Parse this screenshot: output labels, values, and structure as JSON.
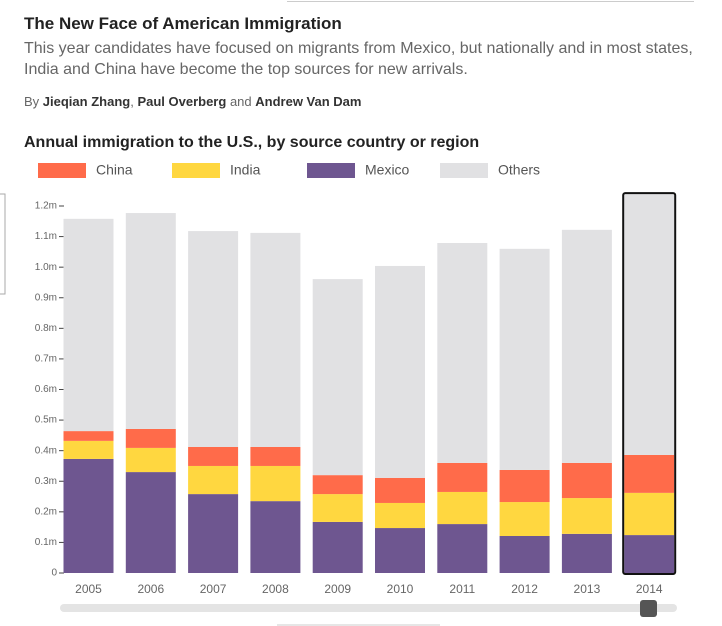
{
  "header": {
    "title": "The New Face of American Immigration",
    "subtitle": "This year candidates have focused on migrants from Mexico, but nationally and in most states, India and China have become the top sources for new arrivals.",
    "byline": {
      "by": "By",
      "authors": [
        "Jieqian Zhang",
        "Paul Overberg",
        "Andrew Van Dam"
      ],
      "and": "and"
    }
  },
  "chart_data": {
    "type": "stacked_bar",
    "title": "Annual immigration to the U.S., by source country or region",
    "categories": [
      "2005",
      "2006",
      "2007",
      "2008",
      "2009",
      "2010",
      "2011",
      "2012",
      "2013",
      "2014"
    ],
    "series": [
      {
        "name": "Mexico",
        "color": "#6e5690",
        "values": [
          0.373,
          0.33,
          0.258,
          0.235,
          0.167,
          0.147,
          0.16,
          0.121,
          0.128,
          0.124
        ]
      },
      {
        "name": "India",
        "color": "#ffd740",
        "values": [
          0.059,
          0.079,
          0.092,
          0.115,
          0.091,
          0.082,
          0.105,
          0.111,
          0.117,
          0.138
        ]
      },
      {
        "name": "China",
        "color": "#ff6b4a",
        "values": [
          0.032,
          0.062,
          0.062,
          0.062,
          0.062,
          0.082,
          0.095,
          0.105,
          0.115,
          0.124
        ]
      },
      {
        "name": "Others",
        "color": "#e1e1e3",
        "values": [
          0.694,
          0.706,
          0.706,
          0.7,
          0.641,
          0.693,
          0.719,
          0.723,
          0.762,
          0.853
        ]
      }
    ],
    "legend_order": [
      "China",
      "India",
      "Mexico",
      "Others"
    ],
    "ylim": [
      0,
      1.2
    ],
    "yticks": [
      0,
      {
        "value": 0.1,
        "label": "0.1m"
      },
      {
        "value": 0.2,
        "label": "0.2m"
      },
      {
        "value": 0.3,
        "label": "0.3m"
      },
      {
        "value": 0.4,
        "label": "0.4m"
      },
      {
        "value": 0.5,
        "label": "0.5m"
      },
      {
        "value": 0.6,
        "label": "0.6m"
      },
      {
        "value": 0.7,
        "label": "0.7m"
      },
      {
        "value": 0.8,
        "label": "0.8m"
      },
      {
        "value": 0.9,
        "label": "0.9m"
      },
      {
        "value": 1.0,
        "label": "1.0m"
      },
      {
        "value": 1.1,
        "label": "1.1m"
      },
      {
        "value": 1.2,
        "label": "1.2m"
      }
    ],
    "grid": false
  }
}
